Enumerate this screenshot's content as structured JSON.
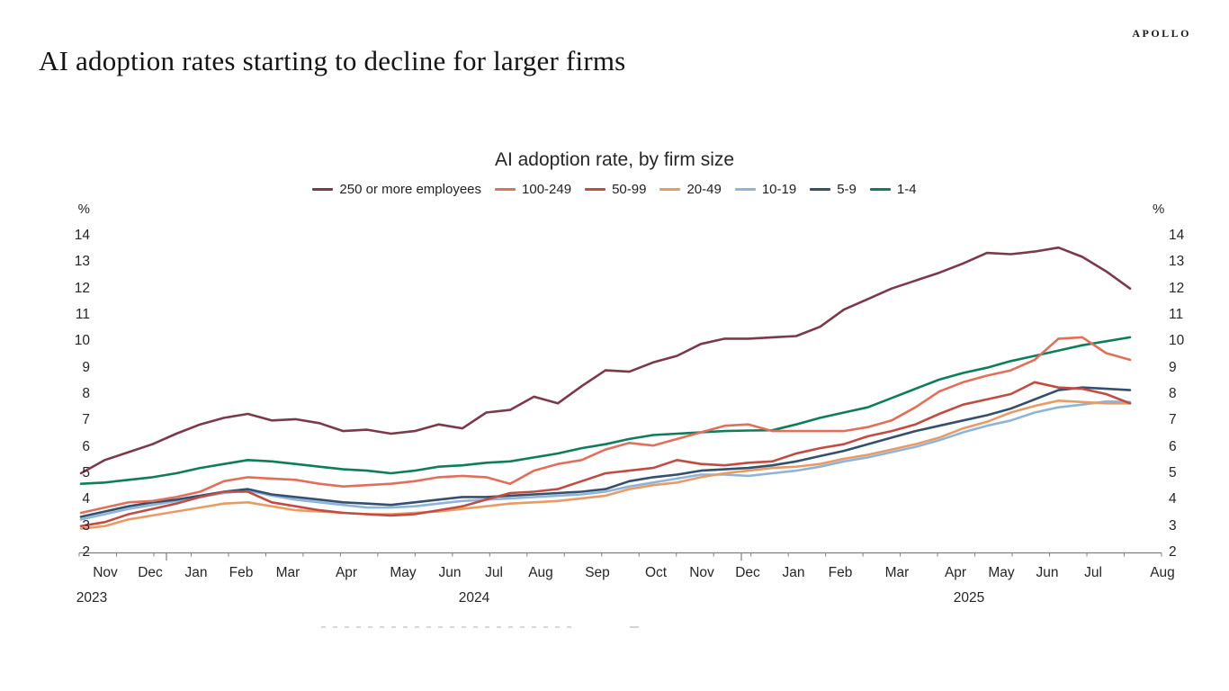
{
  "header": {
    "brand": "APOLLO",
    "title": "AI adoption rates starting to decline for larger firms"
  },
  "chart_data": {
    "type": "line",
    "title": "AI adoption rate, by firm size",
    "unit_label": "%",
    "ylim": [
      2,
      14
    ],
    "ytick_step": 1,
    "grid": false,
    "legend_position": "top-center",
    "axis_color": "#7f7f7f",
    "x_months": [
      "Nov",
      "Dec",
      "Jan",
      "Feb",
      "Mar",
      "Apr",
      "May",
      "Jun",
      "Jul",
      "Aug",
      "Sep",
      "Oct",
      "Nov",
      "Dec",
      "Jan",
      "Feb",
      "Mar",
      "Apr",
      "May",
      "Jun",
      "Jul",
      "Aug"
    ],
    "x_years": [
      "2023",
      "2024",
      "2025"
    ],
    "series": [
      {
        "name": "250 or more employees",
        "color": "#7a3a4a",
        "values": [
          5.0,
          5.5,
          5.8,
          6.1,
          6.5,
          6.85,
          7.1,
          7.25,
          7.0,
          7.05,
          6.9,
          6.6,
          6.65,
          6.5,
          6.6,
          6.85,
          6.7,
          7.3,
          7.4,
          7.9,
          7.65,
          8.3,
          8.9,
          8.85,
          9.2,
          9.45,
          9.9,
          10.1,
          10.1,
          10.15,
          10.2,
          10.55,
          11.2,
          11.6,
          12.0,
          12.3,
          12.6,
          12.95,
          13.35,
          13.3,
          13.4,
          13.55,
          13.2,
          12.65,
          12.0
        ]
      },
      {
        "name": "100-249",
        "color": "#e0705c",
        "values": [
          3.5,
          3.7,
          3.9,
          3.95,
          4.1,
          4.3,
          4.7,
          4.85,
          4.8,
          4.75,
          4.6,
          4.5,
          4.55,
          4.6,
          4.7,
          4.85,
          4.9,
          4.85,
          4.6,
          5.1,
          5.35,
          5.5,
          5.9,
          6.15,
          6.05,
          6.3,
          6.55,
          6.8,
          6.85,
          6.6,
          6.6,
          6.6,
          6.6,
          6.75,
          7.0,
          7.5,
          8.1,
          8.45,
          8.7,
          8.9,
          9.3,
          10.1,
          10.15,
          9.55,
          9.3
        ]
      },
      {
        "name": "50-99",
        "color": "#bf4d44",
        "values": [
          3.0,
          3.15,
          3.45,
          3.65,
          3.85,
          4.1,
          4.3,
          4.3,
          3.9,
          3.75,
          3.6,
          3.5,
          3.45,
          3.4,
          3.45,
          3.6,
          3.75,
          4.0,
          4.25,
          4.3,
          4.4,
          4.7,
          5.0,
          5.1,
          5.2,
          5.5,
          5.35,
          5.3,
          5.4,
          5.45,
          5.75,
          5.95,
          6.1,
          6.4,
          6.6,
          6.85,
          7.25,
          7.6,
          7.8,
          8.0,
          8.45,
          8.25,
          8.2,
          8.0,
          7.65
        ]
      },
      {
        "name": "20-49",
        "color": "#e89b64",
        "values": [
          2.9,
          3.0,
          3.25,
          3.4,
          3.55,
          3.7,
          3.85,
          3.9,
          3.75,
          3.6,
          3.55,
          3.5,
          3.45,
          3.45,
          3.5,
          3.55,
          3.65,
          3.75,
          3.85,
          3.9,
          3.95,
          4.05,
          4.15,
          4.4,
          4.55,
          4.65,
          4.85,
          5.0,
          5.1,
          5.2,
          5.25,
          5.35,
          5.55,
          5.7,
          5.9,
          6.1,
          6.35,
          6.7,
          6.95,
          7.3,
          7.55,
          7.75,
          7.7,
          7.65,
          7.65
        ]
      },
      {
        "name": "10-19",
        "color": "#8fb4da",
        "values": [
          3.25,
          3.45,
          3.65,
          3.8,
          3.95,
          4.1,
          4.25,
          4.35,
          4.15,
          4.0,
          3.9,
          3.8,
          3.7,
          3.7,
          3.75,
          3.85,
          3.95,
          4.0,
          4.05,
          4.1,
          4.15,
          4.2,
          4.3,
          4.5,
          4.65,
          4.8,
          4.95,
          4.95,
          4.9,
          5.0,
          5.1,
          5.25,
          5.45,
          5.6,
          5.8,
          6.0,
          6.25,
          6.55,
          6.8,
          7.0,
          7.3,
          7.5,
          7.6,
          7.72,
          7.7
        ]
      },
      {
        "name": "5-9",
        "color": "#34506e",
        "values": [
          3.35,
          3.55,
          3.75,
          3.9,
          4.0,
          4.15,
          4.3,
          4.4,
          4.2,
          4.1,
          4.0,
          3.9,
          3.85,
          3.8,
          3.9,
          4.0,
          4.1,
          4.1,
          4.15,
          4.2,
          4.25,
          4.3,
          4.4,
          4.7,
          4.85,
          4.95,
          5.1,
          5.15,
          5.2,
          5.3,
          5.45,
          5.65,
          5.85,
          6.1,
          6.35,
          6.6,
          6.8,
          7.0,
          7.2,
          7.45,
          7.8,
          8.15,
          8.25,
          8.2,
          8.15
        ]
      },
      {
        "name": "1-4",
        "color": "#0f7d5a",
        "values": [
          4.6,
          4.65,
          4.75,
          4.85,
          5.0,
          5.2,
          5.35,
          5.5,
          5.45,
          5.35,
          5.25,
          5.15,
          5.1,
          5.0,
          5.1,
          5.25,
          5.3,
          5.4,
          5.45,
          5.6,
          5.75,
          5.95,
          6.1,
          6.3,
          6.45,
          6.5,
          6.55,
          6.6,
          6.62,
          6.63,
          6.85,
          7.1,
          7.3,
          7.5,
          7.85,
          8.2,
          8.55,
          8.8,
          9.0,
          9.25,
          9.45,
          9.65,
          9.85,
          10.0,
          10.15
        ]
      }
    ]
  }
}
